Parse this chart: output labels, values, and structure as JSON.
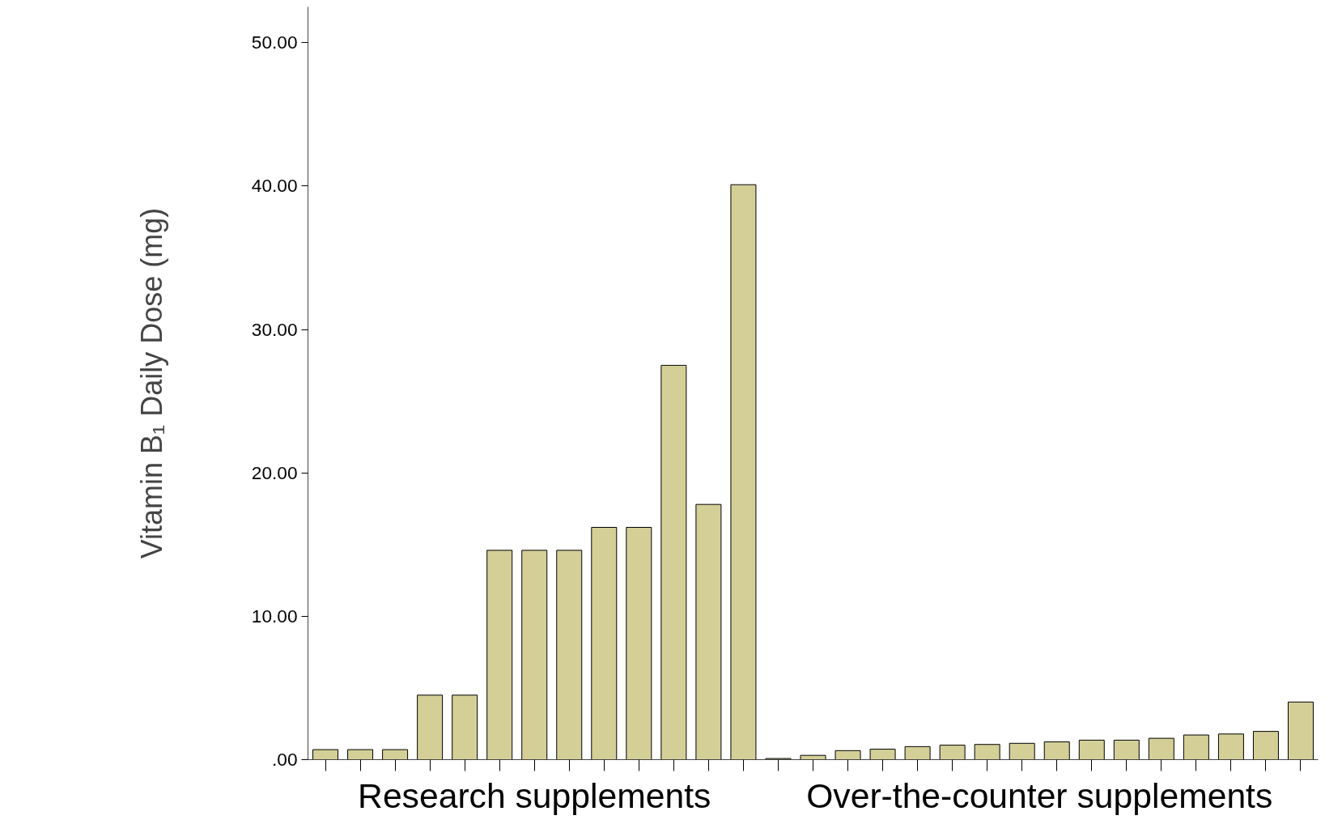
{
  "chart_data": {
    "type": "bar",
    "ylabel": "Vitamin B₁ Daily Dose (mg)",
    "categories": [
      null,
      null,
      null,
      null,
      null,
      null,
      null,
      null,
      null,
      null,
      null,
      null,
      null,
      null,
      null,
      null,
      null,
      null,
      null,
      null,
      null,
      null,
      null,
      null,
      null,
      null,
      null,
      null,
      null
    ],
    "series": [
      {
        "color": "#d4cf97",
        "values": [
          0.7,
          0.7,
          0.7,
          4.5,
          4.5,
          14.6,
          14.6,
          14.6,
          16.2,
          16.2,
          27.5,
          17.8,
          40.1,
          null,
          null,
          null,
          null,
          null,
          null,
          null,
          null,
          null,
          null,
          null,
          null,
          null,
          null,
          null,
          null
        ]
      },
      {
        "color": "#d4cf97",
        "values": [
          null,
          null,
          null,
          null,
          null,
          null,
          null,
          null,
          null,
          null,
          null,
          null,
          null,
          0.08,
          0.3,
          0.63,
          0.73,
          0.91,
          1.01,
          1.06,
          1.14,
          1.24,
          1.36,
          1.36,
          1.49,
          1.72,
          1.79,
          1.97,
          4.02
        ]
      }
    ],
    "annotations": [
      "Research supplements",
      "Over-the-counter supplements"
    ],
    "ylim": [
      0,
      52.5
    ],
    "yticks": [
      {
        "value": 0,
        "label": ".00"
      },
      {
        "value": 10,
        "label": "10.00"
      },
      {
        "value": 20,
        "label": "20.00"
      },
      {
        "value": 30,
        "label": "30.00"
      },
      {
        "value": 40,
        "label": "40.00"
      },
      {
        "value": 50,
        "label": "50.00"
      }
    ],
    "grid": false
  }
}
